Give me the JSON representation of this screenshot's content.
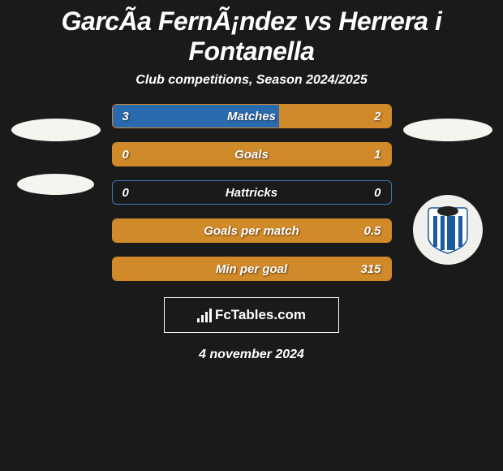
{
  "title": "GarcÃ­a FernÃ¡ndez vs Herrera i Fontanella",
  "subtitle": "Club competitions, Season 2024/2025",
  "footer_date": "4 november 2024",
  "brand": "FcTables.com",
  "colors": {
    "bar_blue": "#2a6bb0",
    "bar_orange": "#d18a2a",
    "border_blue": "#3a7bc0",
    "border_orange": "#e19a3a",
    "background": "#1a1a1a",
    "text": "#ffffff"
  },
  "stats": [
    {
      "label": "Matches",
      "left_val": "3",
      "right_val": "2",
      "left_pct": 60,
      "right_pct": 40,
      "left_color": "#2a6bb0",
      "right_color": "#d18a2a",
      "border_color": "#d18a2a"
    },
    {
      "label": "Goals",
      "left_val": "0",
      "right_val": "1",
      "left_pct": 0,
      "right_pct": 100,
      "left_color": "#2a6bb0",
      "right_color": "#d18a2a",
      "border_color": "#d18a2a"
    },
    {
      "label": "Hattricks",
      "left_val": "0",
      "right_val": "0",
      "left_pct": 0,
      "right_pct": 0,
      "left_color": "#2a6bb0",
      "right_color": "#d18a2a",
      "border_color": "#3a7bc0"
    },
    {
      "label": "Goals per match",
      "left_val": "",
      "right_val": "0.5",
      "left_pct": 0,
      "right_pct": 100,
      "left_color": "#2a6bb0",
      "right_color": "#d18a2a",
      "border_color": "#d18a2a"
    },
    {
      "label": "Min per goal",
      "left_val": "",
      "right_val": "315",
      "left_pct": 0,
      "right_pct": 100,
      "left_color": "#2a6bb0",
      "right_color": "#d18a2a",
      "border_color": "#d18a2a"
    }
  ],
  "badge": {
    "stripe_color": "#1e5a9e",
    "bg_color": "#ffffff",
    "top_color": "#222222"
  }
}
